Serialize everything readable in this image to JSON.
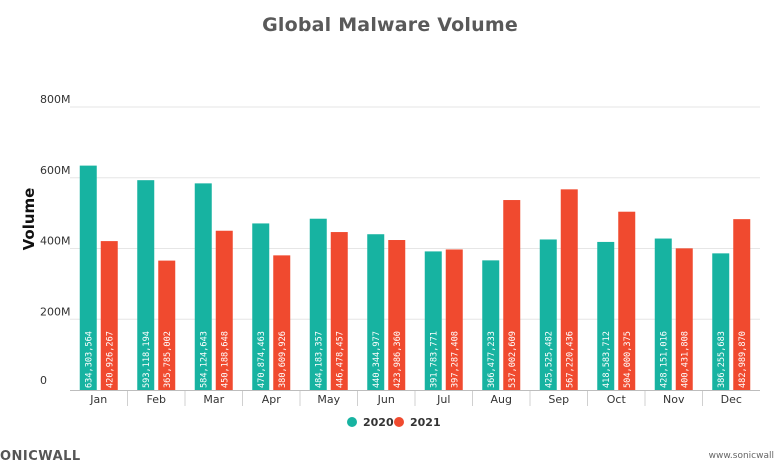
{
  "footer": {
    "brand": "ONICWALL",
    "url": "www.sonicwall"
  },
  "chart_data": {
    "type": "bar",
    "title": "Global Malware Volume",
    "xlabel": "",
    "ylabel": "Volume",
    "ylim": [
      0,
      800000000
    ],
    "yticks": [
      {
        "value": 0,
        "label": "0"
      },
      {
        "value": 200000000,
        "label": "200M"
      },
      {
        "value": 400000000,
        "label": "400M"
      },
      {
        "value": 600000000,
        "label": "600M"
      },
      {
        "value": 800000000,
        "label": "800M"
      }
    ],
    "grid": true,
    "legend": "bottom-center",
    "categories": [
      "Jan",
      "Feb",
      "Mar",
      "Apr",
      "May",
      "Jun",
      "Jul",
      "Aug",
      "Sep",
      "Oct",
      "Nov",
      "Dec"
    ],
    "series": [
      {
        "name": "2020",
        "color": "#17b3a1",
        "values": [
          634303564,
          593118194,
          584124643,
          470874463,
          484183357,
          440344977,
          391783771,
          366477233,
          425525482,
          418583712,
          428151016,
          386255683
        ],
        "labels": [
          "634,303,564",
          "593,118,194",
          "584,124,643",
          "470,874,463",
          "484,183,357",
          "440,344,977",
          "391,783,771",
          "366,477,233",
          "425,525,482",
          "418,583,712",
          "428,151,016",
          "386,255,683"
        ]
      },
      {
        "name": "2021",
        "color": "#f04a2f",
        "values": [
          420926267,
          365785002,
          450188648,
          380609926,
          446478457,
          423986360,
          397287408,
          537002609,
          567220436,
          504000375,
          400431808,
          482989870
        ],
        "labels": [
          "420,926,267",
          "365,785,002",
          "450,188,648",
          "380,609,926",
          "446,478,457",
          "423,986,360",
          "397,287,408",
          "537,002,609",
          "567,220,436",
          "504,000,375",
          "400,431,808",
          "482,989,870"
        ]
      }
    ]
  }
}
